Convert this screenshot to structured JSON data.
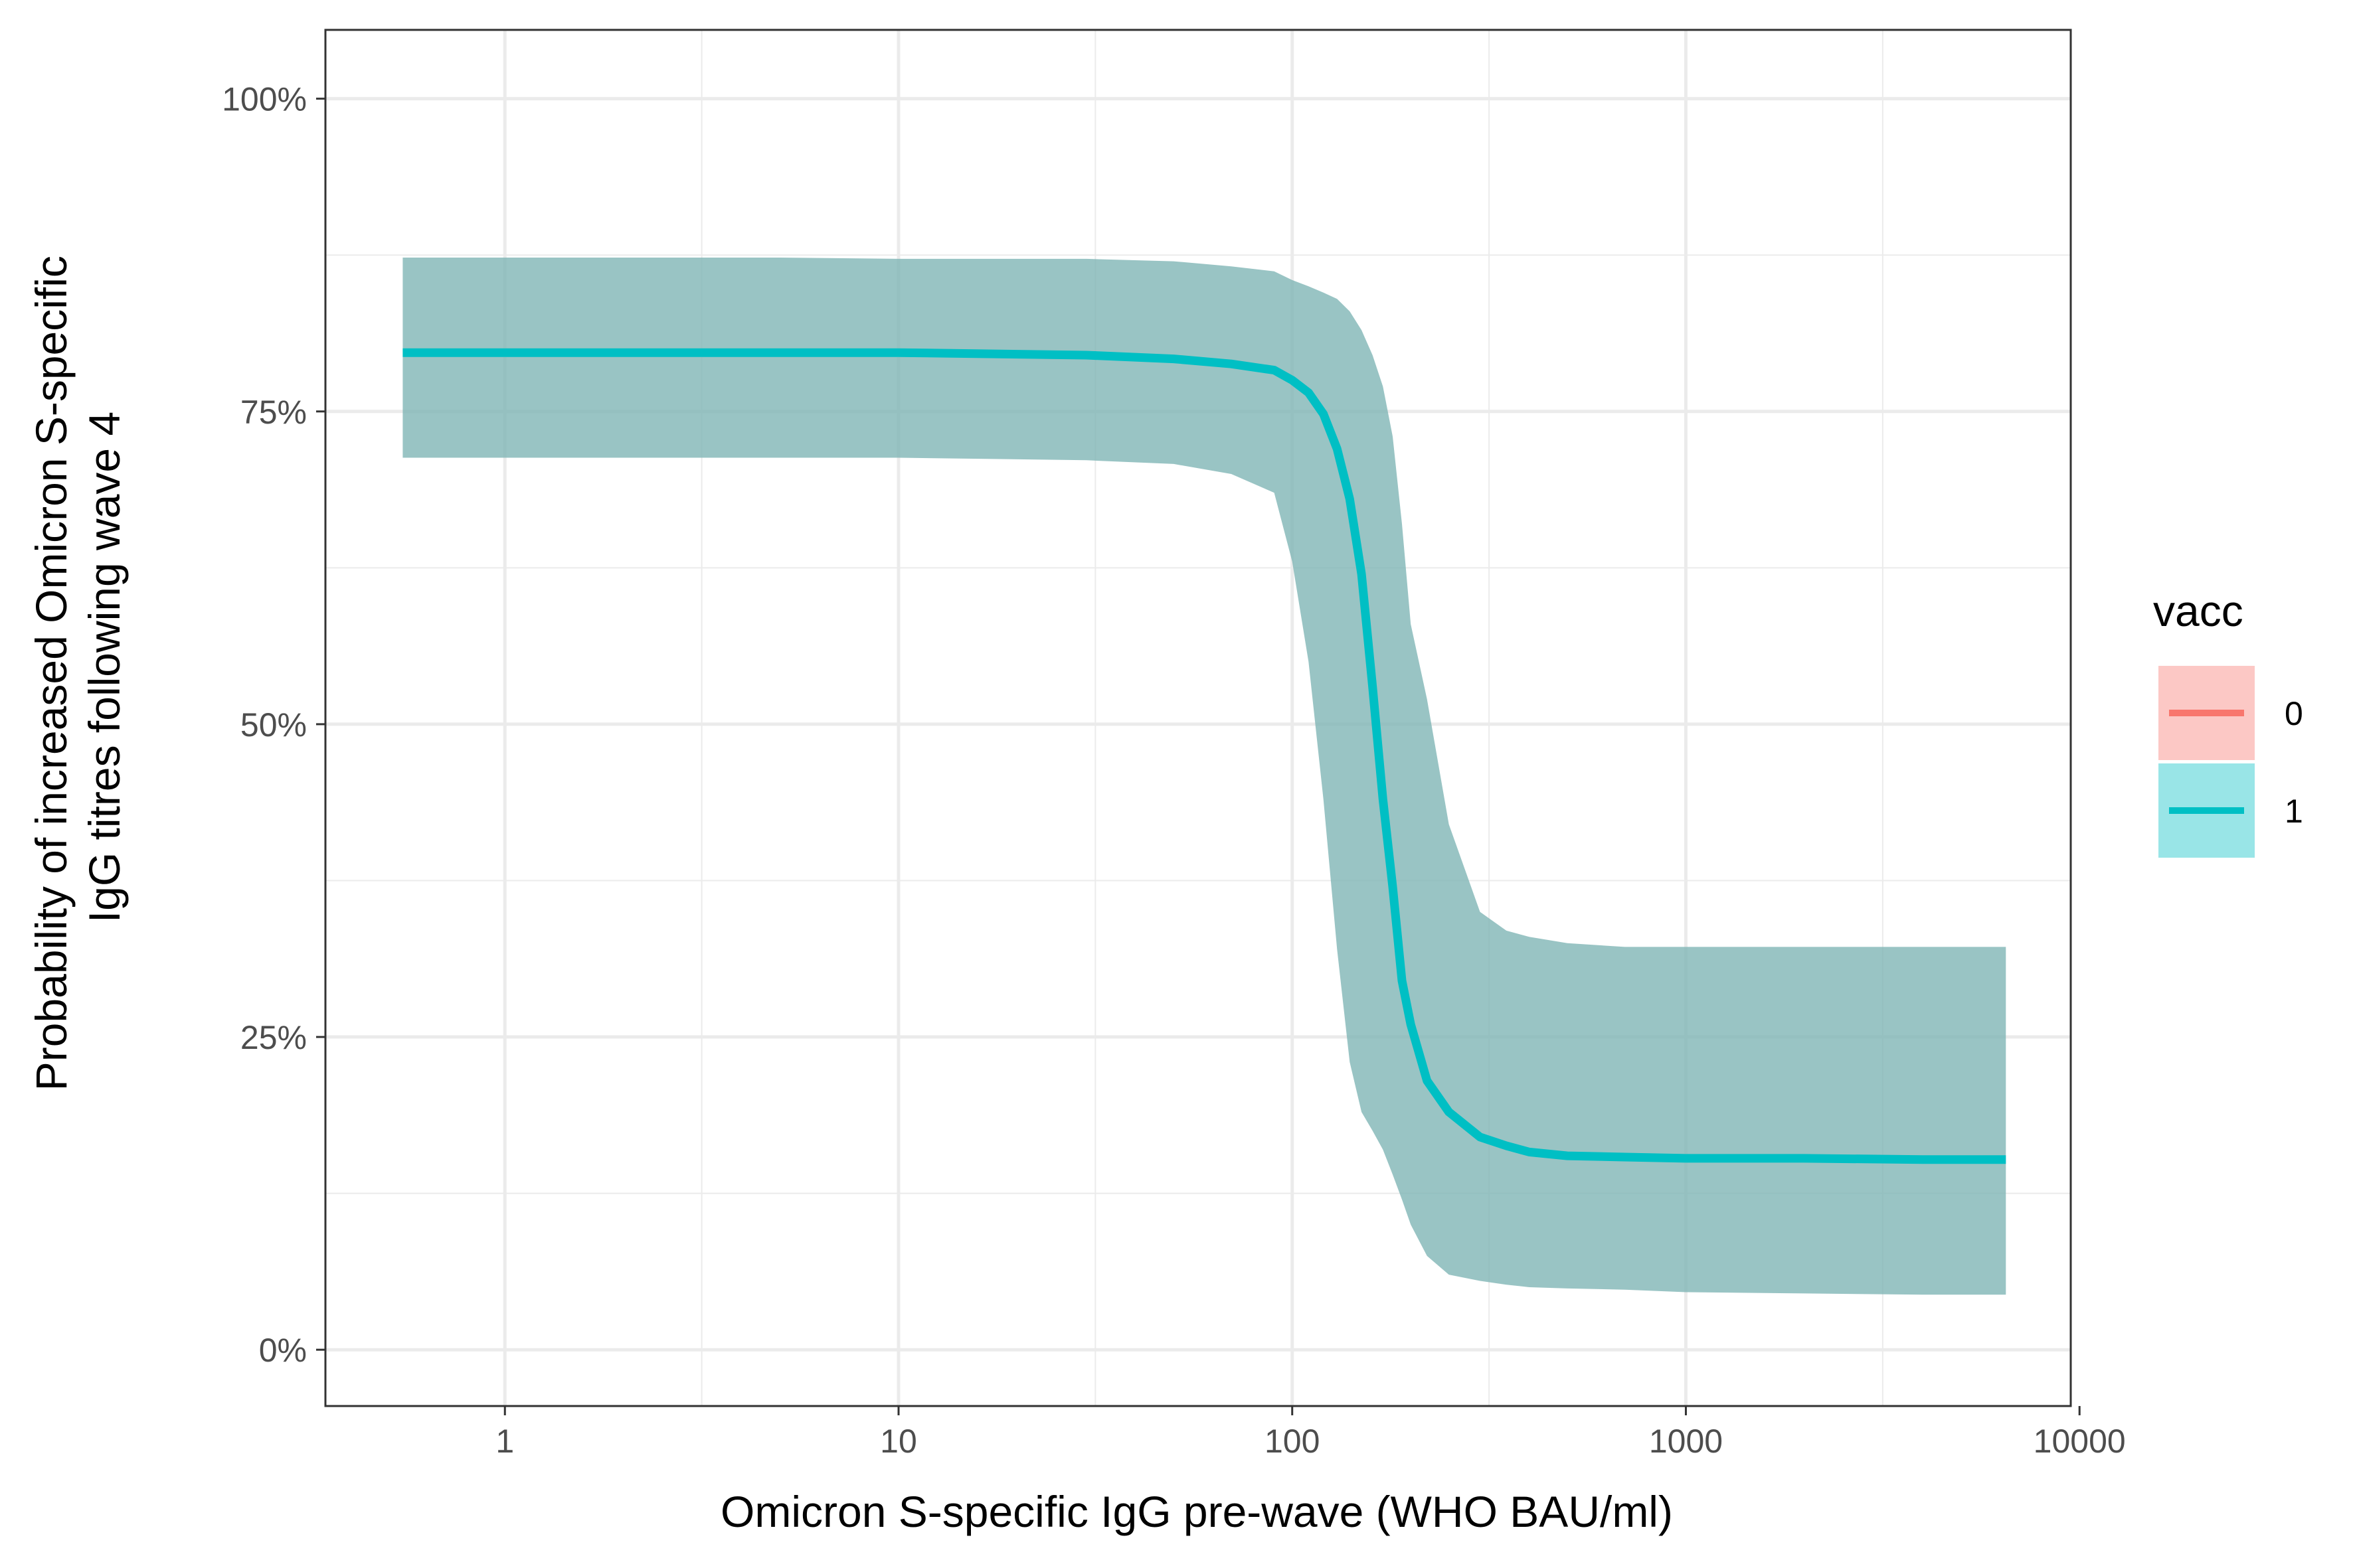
{
  "chart_data": {
    "type": "line",
    "xlabel": "Omicron S-specific IgG pre-wave (WHO BAU/ml)",
    "ylabel_lines": [
      "Probability of increased Omicron S-specific",
      "IgG titres following wave 4"
    ],
    "x_scale": "log10",
    "xlim": [
      0.35,
      9500
    ],
    "ylim": [
      -0.045,
      1.055
    ],
    "x_ticks": [
      1,
      10,
      100,
      1000,
      10000
    ],
    "x_tick_labels": [
      "1",
      "10",
      "100",
      "1000",
      "10000"
    ],
    "y_ticks": [
      0,
      0.25,
      0.5,
      0.75,
      1.0
    ],
    "y_tick_labels": [
      "0%",
      "25%",
      "50%",
      "75%",
      "100%"
    ],
    "grid": true,
    "legend": {
      "title": "vacc",
      "position": "right",
      "entries": [
        {
          "label": "0",
          "line_color": "#F8766D",
          "fill_color": "#F8766D"
        },
        {
          "label": "1",
          "line_color": "#00BFC4",
          "fill_color": "#00BFC4"
        }
      ]
    },
    "series": [
      {
        "name": "1",
        "color": "#00BFC4",
        "ribbon_color": "#7FB5B5",
        "x": [
          0.55,
          1,
          5,
          10,
          30,
          50,
          70,
          90,
          100,
          110,
          120,
          130,
          140,
          150,
          160,
          170,
          180,
          190,
          200,
          220,
          250,
          300,
          350,
          400,
          500,
          700,
          1000,
          2000,
          4000,
          6500
        ],
        "y": [
          0.797,
          0.797,
          0.797,
          0.797,
          0.795,
          0.792,
          0.788,
          0.783,
          0.775,
          0.765,
          0.748,
          0.72,
          0.68,
          0.62,
          0.53,
          0.44,
          0.37,
          0.295,
          0.26,
          0.215,
          0.19,
          0.17,
          0.163,
          0.158,
          0.155,
          0.154,
          0.153,
          0.153,
          0.152,
          0.152
        ],
        "lower": [
          0.713,
          0.713,
          0.713,
          0.713,
          0.711,
          0.708,
          0.7,
          0.685,
          0.63,
          0.55,
          0.44,
          0.32,
          0.23,
          0.19,
          0.175,
          0.16,
          0.14,
          0.12,
          0.1,
          0.075,
          0.06,
          0.055,
          0.052,
          0.05,
          0.049,
          0.048,
          0.046,
          0.045,
          0.044,
          0.044
        ],
        "upper": [
          0.873,
          0.873,
          0.873,
          0.872,
          0.872,
          0.87,
          0.866,
          0.862,
          0.855,
          0.85,
          0.845,
          0.84,
          0.83,
          0.815,
          0.795,
          0.77,
          0.73,
          0.66,
          0.58,
          0.52,
          0.42,
          0.35,
          0.335,
          0.33,
          0.325,
          0.322,
          0.322,
          0.322,
          0.322,
          0.322
        ]
      }
    ]
  }
}
